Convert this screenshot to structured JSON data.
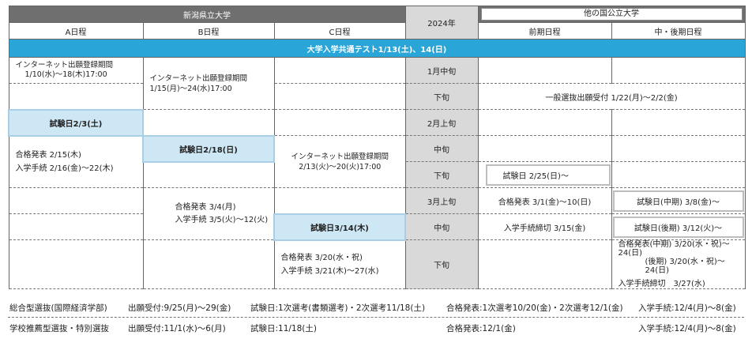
{
  "header": {
    "niigata": "新潟県立大学",
    "year": "2024年",
    "other": "他の国公立大学",
    "a_sched": "A日程",
    "b_sched": "B日程",
    "c_sched": "C日程",
    "front": "前期日程",
    "mid_late": "中・後期日程"
  },
  "banner": "大学入学共通テスト1/13(土)、14(日)",
  "periods": [
    "1月中旬",
    "下旬",
    "2月上旬",
    "中旬",
    "下旬",
    "3月上旬",
    "中旬",
    "下旬"
  ],
  "a_col": {
    "reg1": "インターネット出願登録期間",
    "reg2": "1/10(水)〜18(木)17:00",
    "exam": "試験日2/3(土)",
    "pass": "合格発表 2/15(木)",
    "admit": "入学手続 2/16(金)〜22(木)"
  },
  "b_col": {
    "reg1": "インターネット出願登録期間",
    "reg2": "1/15(月)〜24(水)17:00",
    "exam": "試験日2/18(日)",
    "pass": "合格発表 3/4(月)",
    "admit": "入学手続 3/5(火)〜12(火)"
  },
  "c_col": {
    "reg1": "インターネット出願登録期間",
    "reg2": "2/13(火)〜20(火)17:00",
    "exam": "試験日3/14(木)",
    "pass": "合格発表 3/20(水・祝)",
    "admit": "入学手続 3/21(木)〜27(水)"
  },
  "other_col": {
    "general": "一般選抜出願受付 1/22(月)〜2/2(金)",
    "front_exam": "試験日 2/25(日)〜",
    "front_pass": "合格発表 3/1(金)〜10(日)",
    "front_admit": "入学手続締切 3/15(金)",
    "mid_exam": "試験日(中期) 3/8(金)〜",
    "late_exam": "試験日(後期) 3/12(火)〜",
    "late_pass1": "合格発表(中期) 3/20(水・祝)〜24(日)",
    "late_pass2": "(後期) 3/20(水・祝)〜24(日)",
    "late_admit": "入学手続締切　3/27(水)"
  },
  "footer": {
    "row1": {
      "name": "総合型選抜(国際経済学部)",
      "apply": "出願受付:9/25(月)〜29(金)",
      "exam": "試験日:1次選考(書類選考)・2次選考11/18(土)",
      "pass": "合格発表:1次選考10/20(金)・2次選考12/1(金)",
      "admit": "入学手続:12/4(月)〜8(金)"
    },
    "row2": {
      "name": "学校推薦型選抜・特別選抜",
      "apply": "出願受付:11/1(水)〜6(月)",
      "exam": "試験日:11/18(土)",
      "pass": "合格発表:12/1(金)",
      "admit": "入学手続:12/4(月)〜8(金)"
    }
  }
}
